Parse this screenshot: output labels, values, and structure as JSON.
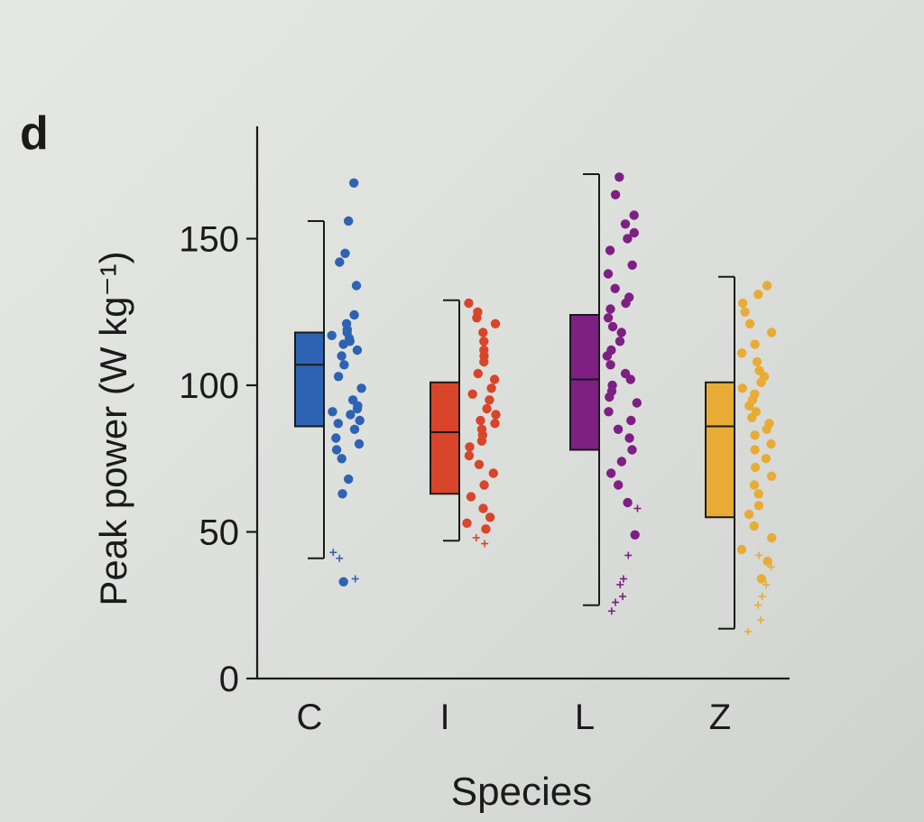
{
  "panel_label": "d",
  "chart_data": {
    "type": "box",
    "title": "",
    "xlabel": "Species",
    "ylabel": "Peak power (W kg⁻¹)",
    "ylim": [
      0,
      185
    ],
    "yticks": [
      0,
      50,
      100,
      150
    ],
    "categories": [
      "C",
      "I",
      "L",
      "Z"
    ],
    "colors": {
      "C": "#2e63b3",
      "I": "#d8452a",
      "L": "#7d1f83",
      "Z": "#e8ac34"
    },
    "boxes": [
      {
        "category": "C",
        "whisker_low": 41,
        "q1": 86,
        "median": 107,
        "q3": 118,
        "whisker_high": 156
      },
      {
        "category": "I",
        "whisker_low": 47,
        "q1": 63,
        "median": 84,
        "q3": 101,
        "whisker_high": 129
      },
      {
        "category": "L",
        "whisker_low": 25,
        "q1": 78,
        "median": 102,
        "q3": 124,
        "whisker_high": 172
      },
      {
        "category": "Z",
        "whisker_low": 17,
        "q1": 55,
        "median": 86,
        "q3": 101,
        "whisker_high": 137
      }
    ],
    "points": {
      "C": [
        169,
        156,
        145,
        142,
        134,
        124,
        121,
        119,
        118,
        117,
        116,
        115,
        114,
        112,
        110,
        107,
        103,
        99,
        95,
        93,
        92,
        91,
        90,
        88,
        87,
        85,
        82,
        80,
        78,
        75,
        68,
        63,
        33
      ],
      "I": [
        128,
        125,
        123,
        121,
        118,
        115,
        112,
        110,
        108,
        104,
        102,
        99,
        97,
        95,
        92,
        90,
        88,
        87,
        85,
        83,
        81,
        79,
        76,
        73,
        70,
        66,
        62,
        58,
        55,
        53,
        51
      ],
      "L": [
        171,
        165,
        158,
        155,
        152,
        150,
        146,
        141,
        138,
        133,
        130,
        128,
        126,
        123,
        120,
        118,
        115,
        112,
        110,
        107,
        104,
        102,
        100,
        98,
        96,
        94,
        91,
        88,
        85,
        82,
        78,
        74,
        70,
        66,
        60,
        49
      ],
      "Z": [
        134,
        131,
        128,
        125,
        121,
        118,
        114,
        111,
        108,
        105,
        103,
        101,
        99,
        97,
        95,
        93,
        91,
        89,
        87,
        85,
        83,
        80,
        78,
        75,
        72,
        69,
        66,
        63,
        59,
        56,
        52,
        48,
        44,
        40,
        34
      ]
    },
    "outliers": {
      "C": [
        43,
        41,
        34
      ],
      "I": [
        48,
        46
      ],
      "L": [
        42,
        58,
        34,
        32,
        28,
        26,
        23
      ],
      "Z": [
        42,
        38,
        32,
        28,
        25,
        20,
        16
      ]
    },
    "grid": false,
    "legend": "none"
  }
}
